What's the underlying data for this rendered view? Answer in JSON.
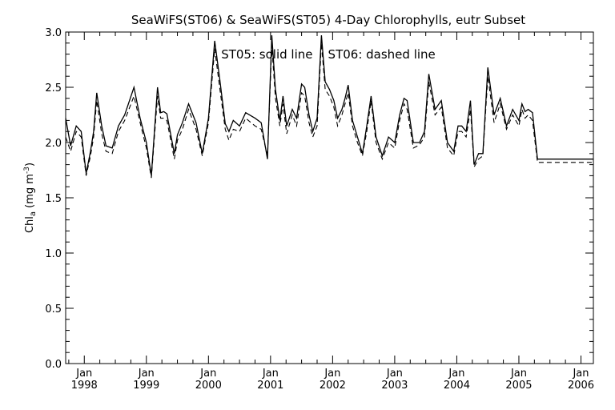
{
  "chart_data": {
    "type": "line",
    "title": "SeaWiFS(ST06) & SeaWiFS(ST05) 4-Day Chlorophylls, eutr Subset",
    "annotation": "ST05: solid line    ST06: dashed line",
    "ylabel_main": "Chl",
    "ylabel_sub": "a",
    "ylabel_units": " (mg m",
    "ylabel_exp": "-3",
    "ylabel_close": ")",
    "ylim": [
      0.0,
      3.0
    ],
    "xlim": [
      1997.7,
      2006.2
    ],
    "yticks": [
      "0.0",
      "0.5",
      "1.0",
      "1.5",
      "2.0",
      "2.5",
      "3.0"
    ],
    "xticks": [
      {
        "month": "Jan",
        "year": "1998",
        "x": 1998.0
      },
      {
        "month": "Jan",
        "year": "1999",
        "x": 1999.0
      },
      {
        "month": "Jan",
        "year": "2000",
        "x": 2000.0
      },
      {
        "month": "Jan",
        "year": "2001",
        "x": 2001.0
      },
      {
        "month": "Jan",
        "year": "2002",
        "x": 2002.0
      },
      {
        "month": "Jan",
        "year": "2003",
        "x": 2003.0
      },
      {
        "month": "Jan",
        "year": "2004",
        "x": 2004.0
      },
      {
        "month": "Jan",
        "year": "2005",
        "x": 2005.0
      },
      {
        "month": "Jan",
        "year": "2006",
        "x": 2006.0
      }
    ],
    "x": [
      1997.7,
      1997.78,
      1997.87,
      1997.95,
      1998.03,
      1998.1,
      1998.15,
      1998.2,
      1998.28,
      1998.35,
      1998.45,
      1998.55,
      1998.65,
      1998.8,
      1998.9,
      1999.0,
      1999.08,
      1999.18,
      1999.23,
      1999.28,
      1999.33,
      1999.4,
      1999.45,
      1999.5,
      1999.58,
      1999.68,
      1999.8,
      1999.9,
      2000.0,
      2000.1,
      2000.18,
      2000.27,
      2000.33,
      2000.4,
      2000.5,
      2000.6,
      2000.75,
      2000.85,
      2000.95,
      2001.02,
      2001.08,
      2001.15,
      2001.2,
      2001.26,
      2001.35,
      2001.42,
      2001.5,
      2001.55,
      2001.62,
      2001.68,
      2001.75,
      2001.82,
      2001.88,
      2001.95,
      2002.02,
      2002.08,
      2002.15,
      2002.2,
      2002.25,
      2002.32,
      2002.4,
      2002.48,
      2002.55,
      2002.62,
      2002.7,
      2002.8,
      2002.9,
      2003.0,
      2003.08,
      2003.15,
      2003.2,
      2003.3,
      2003.4,
      2003.48,
      2003.55,
      2003.65,
      2003.75,
      2003.85,
      2003.95,
      2004.02,
      2004.08,
      2004.15,
      2004.22,
      2004.28,
      2004.35,
      2004.42,
      2004.5,
      2004.6,
      2004.7,
      2004.8,
      2004.9,
      2005.0,
      2005.05,
      2005.1,
      2005.15,
      2005.22,
      2005.3,
      2005.35,
      2005.4,
      2005.45,
      2005.52,
      2005.6,
      2005.7,
      2005.78,
      2005.85,
      2005.92,
      2006.0,
      2006.05,
      2006.12,
      2006.2
    ],
    "series": [
      {
        "name": "ST05",
        "style": "solid",
        "values": [
          2.22,
          1.97,
          2.15,
          2.1,
          1.72,
          1.92,
          2.1,
          2.45,
          2.15,
          1.97,
          1.95,
          2.15,
          2.25,
          2.5,
          2.22,
          2.0,
          1.7,
          2.5,
          2.27,
          2.28,
          2.26,
          2.05,
          1.9,
          2.07,
          2.18,
          2.35,
          2.18,
          1.9,
          2.22,
          2.92,
          2.58,
          2.17,
          2.1,
          2.2,
          2.15,
          2.27,
          2.22,
          2.18,
          1.85,
          2.97,
          2.48,
          2.2,
          2.42,
          2.15,
          2.3,
          2.22,
          2.53,
          2.5,
          2.25,
          2.1,
          2.22,
          2.97,
          2.55,
          2.48,
          2.38,
          2.22,
          2.3,
          2.4,
          2.52,
          2.2,
          2.05,
          1.9,
          2.15,
          2.42,
          2.05,
          1.88,
          2.05,
          2.0,
          2.25,
          2.4,
          2.38,
          2.0,
          2.0,
          2.1,
          2.62,
          2.3,
          2.38,
          2.0,
          1.92,
          2.15,
          2.15,
          2.1,
          2.38,
          1.8,
          1.9,
          1.9,
          2.68,
          2.25,
          2.4,
          2.15,
          2.3,
          2.2,
          2.35,
          2.28,
          2.3,
          2.27,
          1.85,
          1.85,
          1.85,
          1.85,
          1.85,
          1.85,
          1.85,
          1.85,
          1.85,
          1.85,
          1.85,
          1.85,
          1.85,
          1.85
        ]
      },
      {
        "name": "ST06",
        "style": "dashed",
        "values": [
          2.05,
          1.92,
          2.1,
          2.05,
          1.7,
          1.88,
          2.05,
          2.38,
          2.08,
          1.92,
          1.9,
          2.1,
          2.2,
          2.42,
          2.18,
          1.95,
          1.68,
          2.42,
          2.22,
          2.22,
          2.2,
          2.0,
          1.85,
          2.02,
          2.12,
          2.3,
          2.12,
          1.88,
          2.18,
          2.85,
          2.5,
          2.12,
          2.02,
          2.12,
          2.1,
          2.22,
          2.15,
          2.12,
          1.88,
          2.88,
          2.4,
          2.15,
          2.35,
          2.08,
          2.25,
          2.15,
          2.45,
          2.42,
          2.18,
          2.05,
          2.15,
          2.9,
          2.48,
          2.42,
          2.32,
          2.15,
          2.25,
          2.35,
          2.45,
          2.15,
          2.0,
          1.88,
          2.1,
          2.38,
          2.0,
          1.85,
          2.0,
          1.95,
          2.2,
          2.35,
          2.3,
          1.95,
          1.98,
          2.05,
          2.55,
          2.25,
          2.32,
          1.95,
          1.88,
          2.1,
          2.1,
          2.05,
          2.3,
          1.78,
          1.85,
          1.88,
          2.6,
          2.18,
          2.35,
          2.12,
          2.25,
          2.15,
          2.3,
          2.22,
          2.25,
          2.2,
          1.82,
          1.82,
          1.82,
          1.82,
          1.82,
          1.82,
          1.82,
          1.82,
          1.82,
          1.82,
          1.82,
          1.82,
          1.82,
          1.82
        ]
      }
    ]
  }
}
